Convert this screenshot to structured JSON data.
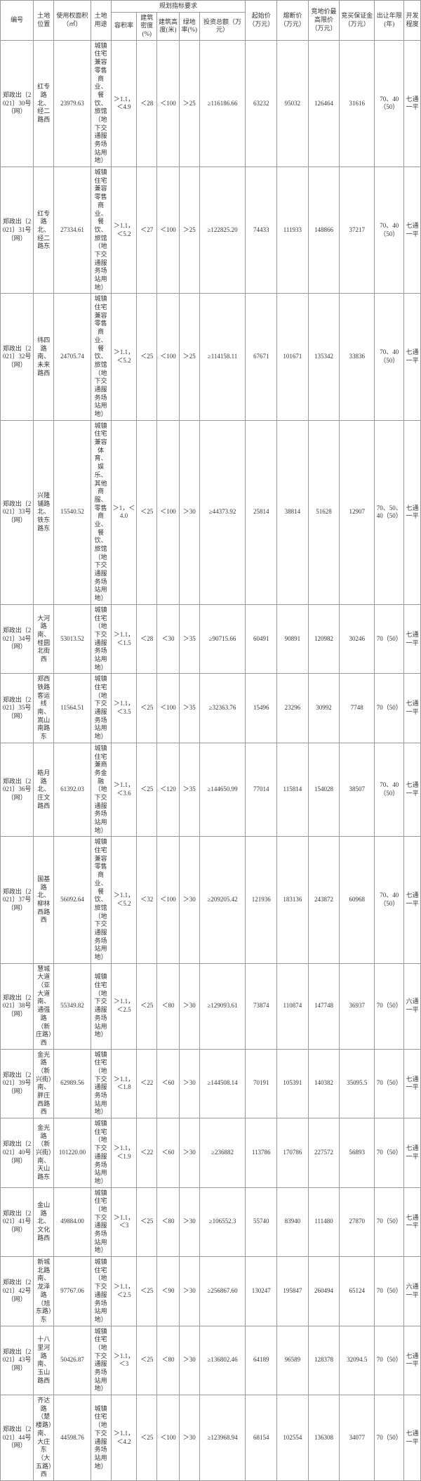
{
  "headers": {
    "num": "编号",
    "loc": "土地位置",
    "area": "使用权面积（㎡）",
    "use": "土地用途",
    "plan_group": "规划指标要求",
    "rjl": "容积率",
    "md": "建筑密度(%)",
    "gd": "建筑高度(米)",
    "lh": "绿地率(%)",
    "inv": "投资总额（万元）",
    "qsj": "起始价（万元）",
    "rdj": "熔断价（万元）",
    "jjj": "竞地价最高限价（万元）",
    "bzj": "竞买保证金（万元）",
    "nq": "出让年限(年)",
    "kf": "开发程度"
  },
  "rows": [
    {
      "num": "郑政出〔2021〕30号（网）",
      "loc": "红专路北、经二路西",
      "area": "23979.63",
      "use": "城镇住宅兼容零售商业、餐饮、旅馆（地下交通服务场站用地）",
      "rjl": "＞1.1，＜4.9",
      "md": "＜28",
      "gd": "＜100",
      "lh": "＞25",
      "inv": "≥116186.66",
      "qsj": "63232",
      "rdj": "95032",
      "jjj": "126464",
      "bzj": "31616",
      "nq": "70、40（50）",
      "kf": "七通一平"
    },
    {
      "num": "郑政出〔2021〕31号（网）",
      "loc": "红专路北、经二路东",
      "area": "27334.61",
      "use": "城镇住宅兼容零售商业、餐饮、旅馆（地下交通服务场站用地）",
      "rjl": "＞1.1，＜5.2",
      "md": "＜27",
      "gd": "＜100",
      "lh": "＞25",
      "inv": "≥122825.20",
      "qsj": "74433",
      "rdj": "111933",
      "jjj": "148866",
      "bzj": "37217",
      "nq": "70、40（50）",
      "kf": "七通一平"
    },
    {
      "num": "郑政出〔2021〕32号（网）",
      "loc": "纬四路南、未来路西",
      "area": "24705.74",
      "use": "城镇住宅兼容零售商业、餐饮、旅馆（地下交通服务场站用地）",
      "rjl": "＞1.1，＜5.2",
      "md": "＜25",
      "gd": "＜100",
      "lh": "＞25",
      "inv": "≥114158.11",
      "qsj": "67671",
      "rdj": "101671",
      "jjj": "135342",
      "bzj": "33836",
      "nq": "70、40（50）",
      "kf": "七通一平"
    },
    {
      "num": "郑政出〔2021〕33号（网）",
      "loc": "兴隆铺路北、铁东路东",
      "area": "15540.52",
      "use": "城镇住宅兼容体育、娱乐、其他商服、零售商业、餐饮、旅馆（地下交通服务场站用地）",
      "rjl": "＞1，＜4.0",
      "md": "＜25",
      "gd": "＜100",
      "lh": "＞30",
      "inv": "≥44373.92",
      "qsj": "25814",
      "rdj": "38814",
      "jjj": "51628",
      "bzj": "12907",
      "nq": "70、50、40（50）",
      "kf": "七通一平"
    },
    {
      "num": "郑政出〔2021〕34号（网）",
      "loc": "大河路南、桂圆北街西",
      "area": "53013.52",
      "use": "城镇住宅（地下交通服务场站用地）",
      "rjl": "＞1.1，＜1.5",
      "md": "＜28",
      "gd": "＜30",
      "lh": "＞35",
      "inv": "≥90715.66",
      "qsj": "60491",
      "rdj": "90891",
      "jjj": "120982",
      "bzj": "30246",
      "nq": "70（50）",
      "kf": "七通一平"
    },
    {
      "num": "郑政出〔2021〕35号（网）",
      "loc": "郑西铁路客运线南、嵩山南路东",
      "area": "11564.51",
      "use": "城镇住宅（地下交通服务场站用地）",
      "rjl": "＞1.1，＜3.5",
      "md": "＜25",
      "gd": "＜100",
      "lh": "＞35",
      "inv": "≥32363.76",
      "qsj": "15496",
      "rdj": "23296",
      "jjj": "30992",
      "bzj": "7748",
      "nq": "70（50）",
      "kf": "七通一平"
    },
    {
      "num": "郑政出〔2021〕36号（网）",
      "loc": "皓月路北、庄文路西",
      "area": "61392.03",
      "use": "城镇住宅兼商务金融（地下交通服务场站用地）",
      "rjl": "＞1.1，＜3.6",
      "md": "＜25",
      "gd": "＜120",
      "lh": "＞35",
      "inv": "≥144650.99",
      "qsj": "77014",
      "rdj": "115814",
      "jjj": "154028",
      "bzj": "38507",
      "nq": "70、40（50）",
      "kf": "七通一平"
    },
    {
      "num": "郑政出〔2021〕37号（网）",
      "loc": "国基路北、柳林西路西",
      "area": "56092.64",
      "use": "城镇住宅兼容零售商业、餐饮、旅馆（地下交通服务场站用地）",
      "rjl": "＞1.1，＜5.2",
      "md": "＜32",
      "gd": "＜100",
      "lh": "＞30",
      "inv": "≥209205.42",
      "qsj": "121936",
      "rdj": "183136",
      "jjj": "243872",
      "bzj": "60968",
      "nq": "70、40（50）",
      "kf": "七通一平"
    },
    {
      "num": "郑政出〔2021〕38号（网）",
      "loc": "慧城大道（亚大道南、通强路（新庄路）西",
      "area": "55349.82",
      "use": "城镇住宅（地下交通服务场站用地）",
      "rjl": "＞1.1，＜2.5",
      "md": "＜25",
      "gd": "＜80",
      "lh": "＞30",
      "inv": "≥129093.61",
      "qsj": "73874",
      "rdj": "110874",
      "jjj": "147748",
      "bzj": "36937",
      "nq": "70（50）",
      "kf": "六通一平"
    },
    {
      "num": "郑政出〔2021〕39号（网）",
      "loc": "金光路（新兴街）南、胖庄西路西",
      "area": "62989.56",
      "use": "城镇住宅（地下交通服务场站用地）",
      "rjl": "＞1.1，＜1.8",
      "md": "＜22",
      "gd": "＜60",
      "lh": "＞30",
      "inv": "≥144508.14",
      "qsj": "70191",
      "rdj": "105391",
      "jjj": "140382",
      "bzj": "35095.5",
      "nq": "70（50）",
      "kf": "七通一平"
    },
    {
      "num": "郑政出〔2021〕40号（网）",
      "loc": "金光路（新兴街）南、天山路东",
      "area": "101220.00",
      "use": "城镇住宅（地下交通服务场站用地）",
      "rjl": "＞1.1，＜1.9",
      "md": "＜22",
      "gd": "＜60",
      "lh": "＞30",
      "inv": "≥236882",
      "qsj": "113786",
      "rdj": "170786",
      "jjj": "227572",
      "bzj": "56893",
      "nq": "70（50）",
      "kf": "七通一平"
    },
    {
      "num": "郑政出〔2021〕41号（网）",
      "loc": "金山路北、文化路西",
      "area": "49884.00",
      "use": "城镇住宅（地下交通服务场站用地）",
      "rjl": "＞1.1，＜3",
      "md": "＜25",
      "gd": "＜80",
      "lh": "＞30",
      "inv": "≥106552.3",
      "qsj": "55740",
      "rdj": "83940",
      "jjj": "111480",
      "bzj": "27870",
      "nq": "70（50）",
      "kf": "七通一平"
    },
    {
      "num": "郑政出〔2021〕42号（网）",
      "loc": "新城北路南、龙泽路（旭东路）东",
      "area": "97767.06",
      "use": "城镇住宅（地下交通服务场站用地）",
      "rjl": "＞1.1，＜2.5",
      "md": "＜25",
      "gd": "＜90",
      "lh": "＞30",
      "inv": "≥256867.60",
      "qsj": "130247",
      "rdj": "195847",
      "jjj": "260494",
      "bzj": "65124",
      "nq": "70（50）",
      "kf": "六通一平"
    },
    {
      "num": "郑政出〔2021〕43号（网）",
      "loc": "十八里河路南、玉山路西",
      "area": "50426.87",
      "use": "城镇住宅（地下交通服务场站用地）",
      "rjl": "＞1.1，＜3",
      "md": "＜25",
      "gd": "＜80",
      "lh": "＞30",
      "inv": "≥136802.46",
      "qsj": "64189",
      "rdj": "96589",
      "jjj": "128378",
      "bzj": "32094.5",
      "nq": "70（50）",
      "kf": "七通一平"
    },
    {
      "num": "郑政出〔2021〕44号（网）",
      "loc": "齐达路（楚楼路）南、大庄东（大五路）西",
      "area": "44598.76",
      "use": "城镇住宅（地下交通服务场站用地）",
      "rjl": "＞1.1，＜4.2",
      "md": "＜25",
      "gd": "＜100",
      "lh": "＞30",
      "inv": "≥123968.94",
      "qsj": "68154",
      "rdj": "102554",
      "jjj": "136308",
      "bzj": "34077",
      "nq": "70（50）",
      "kf": "七通一平"
    }
  ]
}
